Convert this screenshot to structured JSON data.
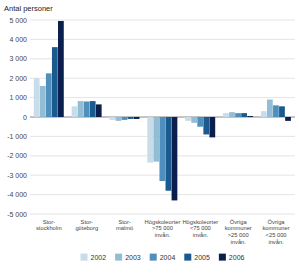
{
  "chart_data": {
    "type": "bar",
    "ylabel": "Antal personer",
    "categories": [
      "Stor-\nstockholm",
      "Stor-\ngöteborg",
      "Stor-\nmalmö",
      "Högskoleorter\n>75 000\ninvån.",
      "Högskoleorter\n<75 000\ninvån.",
      "Övriga kommuner\n>25 000\ninvån.",
      "Övriga kommuner\n<25 000\ninvån."
    ],
    "series": [
      {
        "name": "2002",
        "color": "#c8dcea",
        "values": [
          2000,
          550,
          -150,
          -2350,
          -200,
          200,
          300
        ]
      },
      {
        "name": "2003",
        "color": "#93bcd5",
        "values": [
          1600,
          820,
          -200,
          -2300,
          -300,
          250,
          900
        ]
      },
      {
        "name": "2004",
        "color": "#4e90bb",
        "values": [
          2250,
          800,
          -150,
          -3300,
          -500,
          200,
          600
        ]
      },
      {
        "name": "2005",
        "color": "#1a5a8e",
        "values": [
          3600,
          820,
          -100,
          -3800,
          -900,
          200,
          550
        ]
      },
      {
        "name": "2006",
        "color": "#0a1f4e",
        "values": [
          4950,
          650,
          -100,
          -4300,
          -1050,
          50,
          -200
        ]
      }
    ],
    "ylim": [
      -5000,
      5000
    ],
    "yticks": [
      {
        "value": -5000,
        "label": "-5 000"
      },
      {
        "value": -4000,
        "label": "-4 000"
      },
      {
        "value": -3000,
        "label": "-3 000"
      },
      {
        "value": -2000,
        "label": "-2 000"
      },
      {
        "value": -1000,
        "label": "-1 000"
      },
      0,
      {
        "value": 1000,
        "label": "1 000"
      },
      {
        "value": 2000,
        "label": "2 000"
      },
      {
        "value": 3000,
        "label": "3 000"
      },
      {
        "value": 4000,
        "label": "4 000"
      },
      {
        "value": 5000,
        "label": "5 000"
      }
    ],
    "grid": true,
    "legend": "bottom"
  }
}
